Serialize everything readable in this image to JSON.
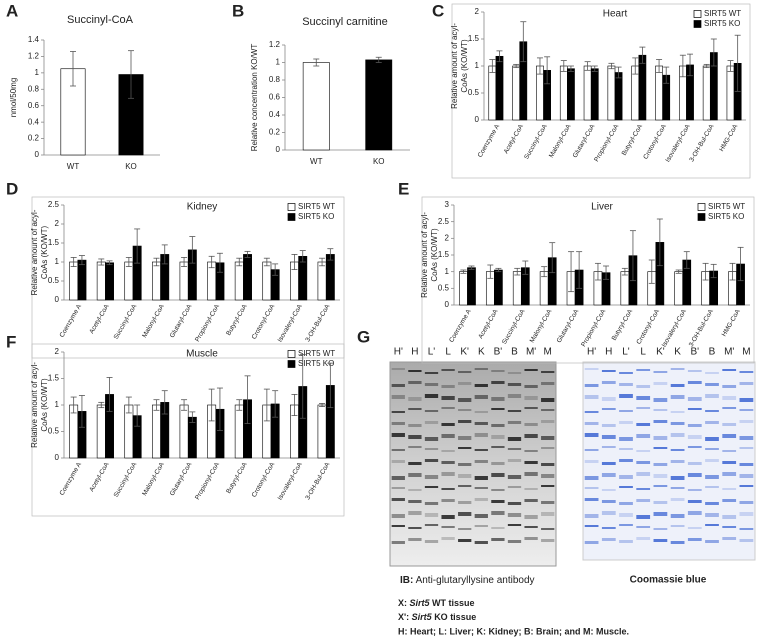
{
  "chart_data": [
    {
      "type": "bar",
      "panel": "A",
      "title": "Succinyl-CoA",
      "y_label": "nmol/50mg",
      "categories": [
        "WT",
        "KO"
      ],
      "values": [
        1.05,
        0.98
      ],
      "errors": [
        0.21,
        0.29
      ],
      "colors": [
        "#ffffff",
        "#000000"
      ],
      "ylim": [
        0,
        1.4
      ],
      "yticks": [
        0,
        0.2,
        0.4,
        0.6,
        0.8,
        1,
        1.2,
        1.4
      ]
    },
    {
      "type": "bar",
      "panel": "B",
      "title": "Succinyl carnitine",
      "y_label": "Relative concentration KO/WT",
      "categories": [
        "WT",
        "KO"
      ],
      "values": [
        1.0,
        1.03
      ],
      "errors": [
        0.04,
        0.03
      ],
      "colors": [
        "#ffffff",
        "#000000"
      ],
      "ylim": [
        0,
        1.2
      ],
      "yticks": [
        0,
        0.2,
        0.4,
        0.6,
        0.8,
        1,
        1.2
      ]
    },
    {
      "type": "grouped_bar",
      "panel": "C",
      "title": "Heart",
      "y_label": "Relative amount of acyl-CoAs (KO/WT)",
      "categories": [
        "Coenzyme A",
        "Acetyl-CoA",
        "Succinyl-CoA",
        "Malonyl-CoA",
        "Glutaryl-CoA",
        "Propionyl-CoA",
        "Butyryl-CoA",
        "Crotonyl-CoA",
        "Isovaleryl-CoA",
        "3-OH-Bul-CoA",
        "HMG-CoA"
      ],
      "series": [
        {
          "name": "SIRT5 WT",
          "color": "#ffffff",
          "values": [
            1,
            1,
            1,
            1,
            1,
            1,
            1,
            1,
            1,
            1,
            1
          ],
          "errors": [
            0.12,
            0.03,
            0.15,
            0.1,
            0.08,
            0.05,
            0.15,
            0.12,
            0.2,
            0.03,
            0.1
          ]
        },
        {
          "name": "SIRT5 KO",
          "color": "#000000",
          "values": [
            1.18,
            1.45,
            0.92,
            0.95,
            0.95,
            0.88,
            1.2,
            0.83,
            1.02,
            1.25,
            1.05
          ],
          "errors": [
            0.1,
            0.37,
            0.25,
            0.05,
            0.05,
            0.1,
            0.15,
            0.15,
            0.2,
            0.25,
            0.52
          ]
        }
      ],
      "ylim": [
        0,
        2
      ],
      "yticks": [
        0,
        0.5,
        1,
        1.5,
        2
      ]
    },
    {
      "type": "grouped_bar",
      "panel": "D",
      "title": "Kidney",
      "y_label": "Relative amount of acyl-CoAs (KO/WT)",
      "categories": [
        "Coenzyme A",
        "Acetyl-CoA",
        "Succinyl-CoA",
        "Malonyl-CoA",
        "Glutaryl-CoA",
        "Propionyl-CoA",
        "Butyryl-CoA",
        "Crotonyl-CoA",
        "Isovaleryl-CoA",
        "3-OH-Bul-CoA"
      ],
      "series": [
        {
          "name": "SIRT5 WT",
          "color": "#ffffff",
          "values": [
            1,
            1,
            1,
            1,
            1,
            1,
            1,
            1,
            1,
            1
          ],
          "errors": [
            0.12,
            0.08,
            0.12,
            0.1,
            0.12,
            0.15,
            0.1,
            0.1,
            0.2,
            0.1
          ]
        },
        {
          "name": "SIRT5 KO",
          "color": "#000000",
          "values": [
            1.05,
            0.98,
            1.42,
            1.2,
            1.32,
            0.98,
            1.2,
            0.8,
            1.15,
            1.2
          ],
          "errors": [
            0.12,
            0.05,
            0.45,
            0.25,
            0.35,
            0.25,
            0.08,
            0.15,
            0.15,
            0.15
          ]
        }
      ],
      "ylim": [
        0,
        2.5
      ],
      "yticks": [
        0,
        0.5,
        1,
        1.5,
        2,
        2.5
      ]
    },
    {
      "type": "grouped_bar",
      "panel": "E",
      "title": "Liver",
      "y_label": "Relative amount of acyl-CoAs (KO/WT)",
      "categories": [
        "Coenzyme A",
        "Acetyl-CoA",
        "Succinyl-CoA",
        "Malonyl-CoA",
        "Glutaryl-CoA",
        "Propionyl-CoA",
        "Butyryl-CoA",
        "Crotonyl-CoA",
        "Isovaleryl-CoA",
        "3-OH-Bul-CoA",
        "HMG-CoA"
      ],
      "series": [
        {
          "name": "SIRT5 WT",
          "color": "#ffffff",
          "values": [
            1,
            1,
            1,
            1,
            1,
            1,
            1,
            1,
            1,
            1,
            1
          ],
          "errors": [
            0.05,
            0.2,
            0.1,
            0.15,
            0.6,
            0.25,
            0.1,
            0.35,
            0.05,
            0.25,
            0.25
          ]
        },
        {
          "name": "SIRT5 KO",
          "color": "#000000",
          "values": [
            1.12,
            1.05,
            1.12,
            1.42,
            1.05,
            0.97,
            1.48,
            1.88,
            1.35,
            1.02,
            1.23
          ],
          "errors": [
            0.05,
            0.05,
            0.2,
            0.45,
            0.55,
            0.2,
            0.75,
            0.7,
            0.25,
            0.2,
            0.5
          ]
        }
      ],
      "ylim": [
        0,
        3
      ],
      "yticks": [
        0,
        0.5,
        1,
        1.5,
        2,
        2.5,
        3
      ]
    },
    {
      "type": "grouped_bar",
      "panel": "F",
      "title": "Muscle",
      "y_label": "Relative amount of acyl-CoAs (KO/WT)",
      "categories": [
        "Coenzyme A",
        "Acetyl-CoA",
        "Succinyl-CoA",
        "Malonyl-CoA",
        "Glutaryl-CoA",
        "Propionyl-CoA",
        "Butyryl-CoA",
        "Crotonyl-CoA",
        "Isovaleryl-CoA",
        "3-OH-Bul-CoA"
      ],
      "series": [
        {
          "name": "SIRT5 WT",
          "color": "#ffffff",
          "values": [
            1,
            1,
            1,
            1,
            1,
            1,
            1,
            1,
            1,
            1
          ],
          "errors": [
            0.15,
            0.05,
            0.15,
            0.1,
            0.1,
            0.3,
            0.1,
            0.3,
            0.2,
            0.03
          ]
        },
        {
          "name": "SIRT5 KO",
          "color": "#000000",
          "values": [
            0.88,
            1.2,
            0.8,
            1.05,
            0.77,
            0.92,
            1.1,
            1.02,
            1.35,
            1.37
          ],
          "errors": [
            0.3,
            0.32,
            0.2,
            0.22,
            0.1,
            0.4,
            0.45,
            0.25,
            0.6,
            0.42
          ]
        }
      ],
      "ylim": [
        0,
        2
      ],
      "yticks": [
        0,
        0.5,
        1,
        1.5,
        2
      ]
    }
  ],
  "panel_g": {
    "panel": "G",
    "lanes": [
      "H'",
      "H",
      "L'",
      "L",
      "K'",
      "K",
      "B'",
      "B",
      "M'",
      "M"
    ],
    "blot_caption": {
      "bold": "IB:",
      "text": "Anti-glutaryllysine antibody"
    },
    "gel_caption": "Coomassie blue",
    "key": [
      {
        "key": "X:",
        "italic": "Sirt5",
        "text": "WT tissue"
      },
      {
        "key": "X':",
        "italic": "Sirt5",
        "text": "KO tissue"
      }
    ],
    "tissues": "H: Heart; L: Liver; K: Kidney; B: Brain; and M: Muscle."
  }
}
